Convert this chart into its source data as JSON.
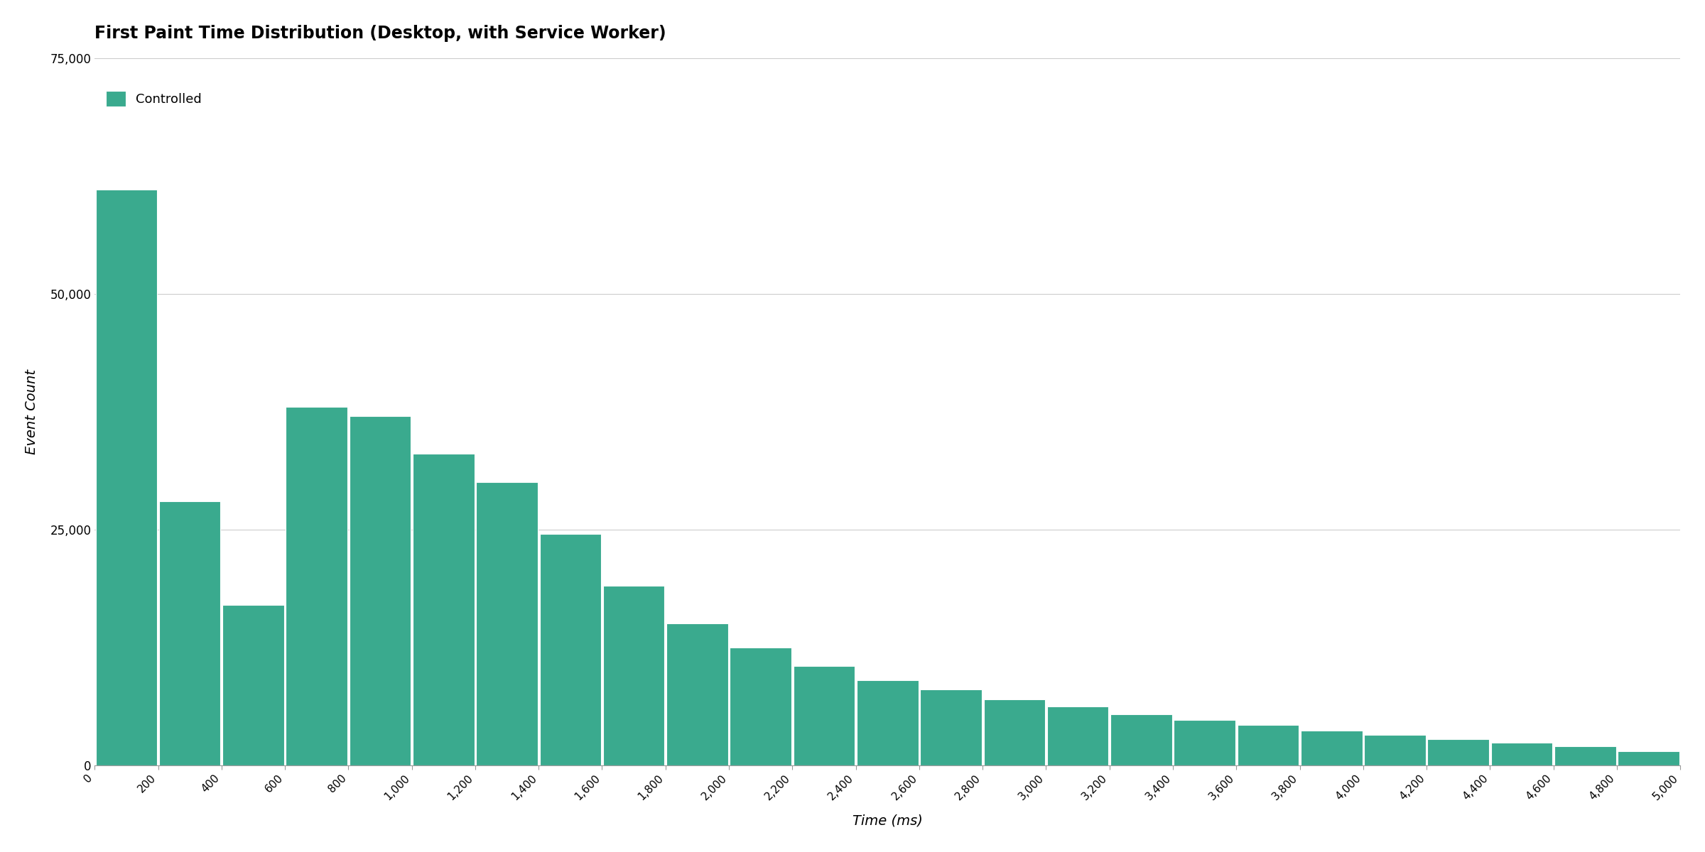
{
  "title": "First Paint Time Distribution (Desktop, with Service Worker)",
  "xlabel": "Time (ms)",
  "ylabel": "Event Count",
  "legend_label": "Controlled",
  "bar_color": "#3aaa8e",
  "background_color": "#ffffff",
  "grid_color": "#cccccc",
  "spine_color": "#999999",
  "bin_size": 200,
  "xlim": [
    0,
    5000
  ],
  "ylim": [
    0,
    75000
  ],
  "yticks": [
    0,
    25000,
    50000,
    75000
  ],
  "xtick_step": 200,
  "title_fontsize": 17,
  "axis_label_fontsize": 14,
  "tick_fontsize": 11,
  "legend_fontsize": 13,
  "bar_values": [
    61000,
    28000,
    17000,
    38000,
    37000,
    33000,
    30000,
    24500,
    19000,
    15000,
    12500,
    10500,
    9000,
    8000,
    7000,
    6200,
    5400,
    4800,
    4300,
    3700,
    3200,
    2800,
    2400,
    2000,
    1500
  ]
}
